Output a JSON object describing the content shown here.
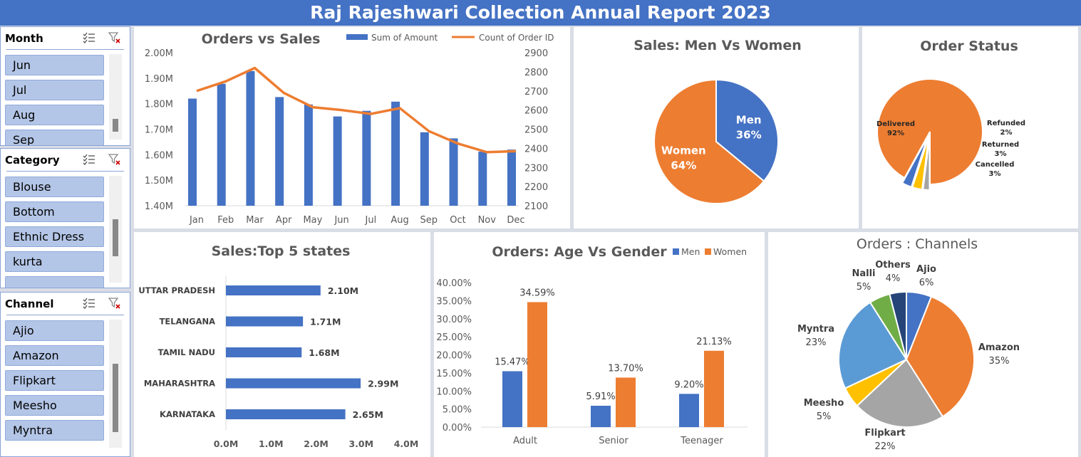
{
  "header": {
    "title": "Raj Rajeshwari Collection Annual Report 2023"
  },
  "slicers": [
    {
      "title": "Month",
      "items": [
        "Jun",
        "Jul",
        "Aug",
        "Sep"
      ]
    },
    {
      "title": "Category",
      "items": [
        "Blouse",
        "Bottom",
        "Ethnic Dress",
        "kurta",
        ""
      ]
    },
    {
      "title": "Channel",
      "items": [
        "Ajio",
        "Amazon",
        "Flipkart",
        "Meesho",
        "Myntra"
      ]
    }
  ],
  "colors": {
    "blue": "#4472c4",
    "orange": "#ed7d31",
    "gray": "#a5a5a5",
    "yellow": "#ffc000",
    "lightblue": "#5b9bd5",
    "green": "#70ad47",
    "navy": "#264478"
  },
  "chart_data": [
    {
      "type": "bar",
      "title": "Orders vs Sales",
      "categories": [
        "Jan",
        "Feb",
        "Mar",
        "Apr",
        "May",
        "Jun",
        "Jul",
        "Aug",
        "Sep",
        "Oct",
        "Nov",
        "Dec"
      ],
      "series": [
        {
          "name": "Sum of Amount",
          "type": "bar",
          "axis": "left",
          "values": [
            1820000,
            1878000,
            1928000,
            1826000,
            1797000,
            1750000,
            1772000,
            1808000,
            1688000,
            1664000,
            1612000,
            1620000
          ]
        },
        {
          "name": "Count of Order ID",
          "type": "line",
          "axis": "right",
          "values": [
            2700,
            2750,
            2820,
            2690,
            2615,
            2600,
            2580,
            2610,
            2490,
            2425,
            2380,
            2385
          ]
        }
      ],
      "left_axis": {
        "min": 1400000,
        "max": 2000000,
        "step": 100000,
        "tick_labels": [
          "1.40M",
          "1.50M",
          "1.60M",
          "1.70M",
          "1.80M",
          "1.90M",
          "2.00M"
        ]
      },
      "right_axis": {
        "min": 2100,
        "max": 2900,
        "step": 100,
        "tick_labels": [
          "2100",
          "2200",
          "2300",
          "2400",
          "2500",
          "2600",
          "2700",
          "2800",
          "2900"
        ]
      },
      "legend": "top-right",
      "grid": false
    },
    {
      "type": "pie",
      "title": "Sales: Men Vs Women",
      "slices": [
        {
          "label": "Men",
          "value": 36,
          "display": "36%",
          "color": "#4472c4"
        },
        {
          "label": "Women",
          "value": 64,
          "display": "64%",
          "color": "#ed7d31"
        }
      ]
    },
    {
      "type": "pie",
      "title": "Order Status",
      "slices": [
        {
          "label": "Delivered",
          "value": 92,
          "display": "92%",
          "color": "#ed7d31"
        },
        {
          "label": "Refunded",
          "value": 2,
          "display": "2%",
          "color": "#a5a5a5"
        },
        {
          "label": "Returned",
          "value": 3,
          "display": "3%",
          "color": "#ffc000"
        },
        {
          "label": "Cancelled",
          "value": 3,
          "display": "3%",
          "color": "#4472c4"
        }
      ]
    },
    {
      "type": "bar",
      "orientation": "horizontal",
      "title": "Sales:Top 5 states",
      "categories": [
        "UTTAR PRADESH",
        "TELANGANA",
        "TAMIL NADU",
        "MAHARASHTRA",
        "KARNATAKA"
      ],
      "values": [
        2100000,
        1710000,
        1680000,
        2990000,
        2650000
      ],
      "data_labels": [
        "2.10M",
        "1.71M",
        "1.68M",
        "2.99M",
        "2.65M"
      ],
      "xlim": [
        0,
        4000000
      ],
      "tick_labels": [
        "0.0M",
        "1.0M",
        "2.0M",
        "3.0M",
        "4.0M"
      ],
      "grid": false
    },
    {
      "type": "bar",
      "title": "Orders: Age Vs Gender",
      "categories": [
        "Adult",
        "Senior",
        "Teenager"
      ],
      "series": [
        {
          "name": "Men",
          "values": [
            15.47,
            5.91,
            9.2
          ],
          "labels": [
            "15.47%",
            "5.91%",
            "9.20%"
          ]
        },
        {
          "name": "Women",
          "values": [
            34.59,
            13.7,
            21.13
          ],
          "labels": [
            "34.59%",
            "13.70%",
            "21.13%"
          ]
        }
      ],
      "ylim": [
        0,
        40
      ],
      "tick_labels": [
        "0.00%",
        "5.00%",
        "10.00%",
        "15.00%",
        "20.00%",
        "25.00%",
        "30.00%",
        "35.00%",
        "40.00%"
      ],
      "legend": "top-right",
      "grid": false
    },
    {
      "type": "pie",
      "title": "Orders : Channels",
      "slices": [
        {
          "label": "Ajio",
          "value": 6,
          "display": "6%",
          "color": "#4472c4"
        },
        {
          "label": "Amazon",
          "value": 35,
          "display": "35%",
          "color": "#ed7d31"
        },
        {
          "label": "Flipkart",
          "value": 22,
          "display": "22%",
          "color": "#a5a5a5"
        },
        {
          "label": "Meesho",
          "value": 5,
          "display": "5%",
          "color": "#ffc000"
        },
        {
          "label": "Myntra",
          "value": 23,
          "display": "23%",
          "color": "#5b9bd5"
        },
        {
          "label": "Nalli",
          "value": 5,
          "display": "5%",
          "color": "#70ad47"
        },
        {
          "label": "Others",
          "value": 4,
          "display": "4%",
          "color": "#264478"
        }
      ]
    }
  ]
}
